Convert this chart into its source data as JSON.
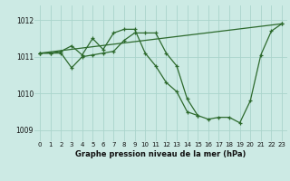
{
  "title": "Graphe pression niveau de la mer (hPa)",
  "bg_color": "#cceae4",
  "grid_color": "#aad4cc",
  "line_color": "#2d6a2d",
  "ylim": [
    1008.7,
    1012.4
  ],
  "xlim": [
    -0.5,
    23.5
  ],
  "yticks": [
    1009,
    1010,
    1011,
    1012
  ],
  "xticks": [
    0,
    1,
    2,
    3,
    4,
    5,
    6,
    7,
    8,
    9,
    10,
    11,
    12,
    13,
    14,
    15,
    16,
    17,
    18,
    19,
    20,
    21,
    22,
    23
  ],
  "series": [
    {
      "x": [
        0,
        1,
        2,
        3,
        4,
        5,
        6,
        7,
        8,
        9,
        10,
        11,
        12,
        13,
        14,
        15,
        16,
        17,
        18,
        19,
        20,
        21,
        22,
        23
      ],
      "y": [
        1011.1,
        1011.1,
        1011.15,
        1011.3,
        1011.05,
        1011.5,
        1011.2,
        1011.65,
        1011.75,
        1011.75,
        1011.1,
        1010.75,
        1010.3,
        1010.05,
        1009.5,
        1009.4,
        1009.3,
        1009.35,
        1009.35,
        1009.2,
        1009.8,
        1011.05,
        1011.7,
        1011.9
      ]
    },
    {
      "x": [
        0,
        23
      ],
      "y": [
        1011.1,
        1011.9
      ]
    },
    {
      "x": [
        0,
        1,
        2,
        3,
        4,
        5,
        6,
        7,
        8,
        9,
        10,
        11,
        12,
        13,
        14,
        15
      ],
      "y": [
        1011.1,
        1011.1,
        1011.1,
        1010.7,
        1011.0,
        1011.05,
        1011.1,
        1011.15,
        1011.45,
        1011.65,
        1011.65,
        1011.65,
        1011.1,
        1010.75,
        1009.85,
        1009.4
      ]
    }
  ]
}
